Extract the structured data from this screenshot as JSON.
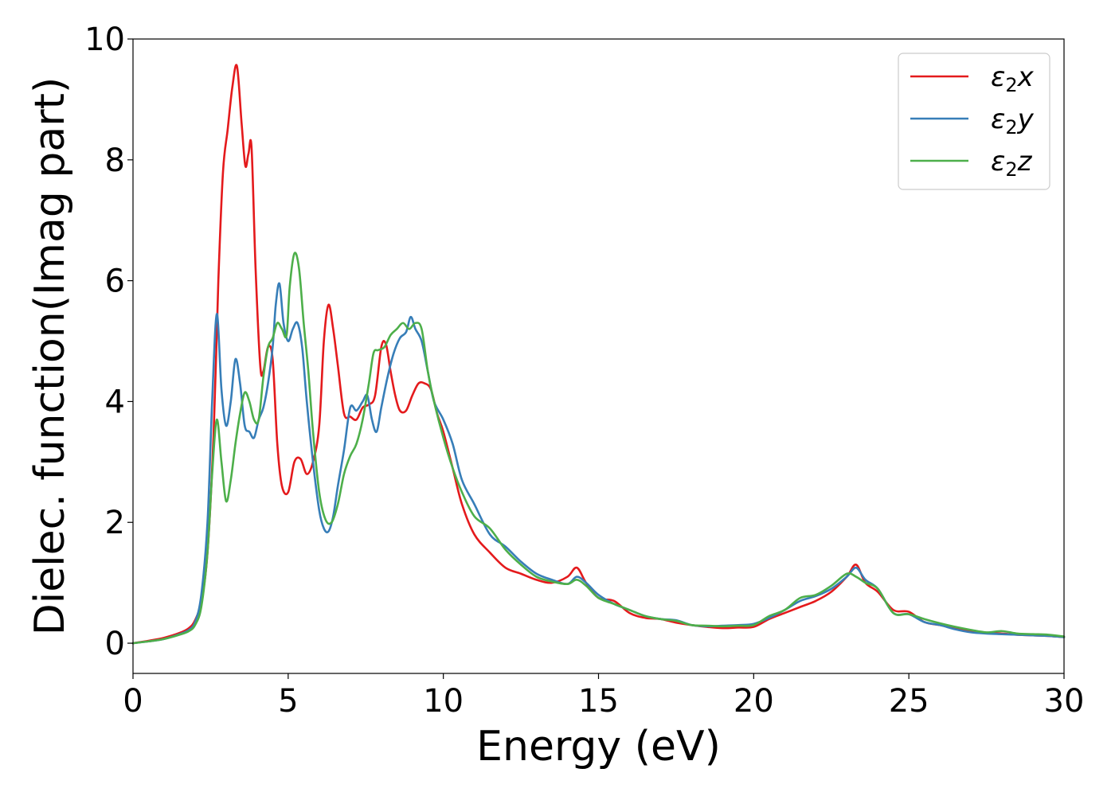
{
  "chart_data": {
    "type": "line",
    "title": "",
    "xlabel": "Energy (eV)",
    "ylabel": "Dielec. function(Imag part)",
    "xlim": [
      0,
      30
    ],
    "ylim": [
      -0.5,
      10
    ],
    "xticks": [
      "0",
      "5",
      "10",
      "15",
      "20",
      "25",
      "30"
    ],
    "yticks": [
      "0",
      "2",
      "4",
      "6",
      "8",
      "10"
    ],
    "grid": false,
    "legend_position": "top-right",
    "series": [
      {
        "name": "ε₂x",
        "legend_base": "ε",
        "legend_sub": "2",
        "legend_suffix": "x",
        "color": "#e41a1c",
        "x": [
          0,
          0.5,
          1.0,
          1.5,
          1.8,
          2.0,
          2.2,
          2.4,
          2.6,
          2.75,
          2.9,
          3.05,
          3.2,
          3.35,
          3.5,
          3.62,
          3.72,
          3.82,
          3.95,
          4.1,
          4.2,
          4.35,
          4.5,
          4.65,
          4.8,
          5.0,
          5.2,
          5.4,
          5.6,
          5.8,
          6.0,
          6.15,
          6.3,
          6.45,
          6.6,
          6.8,
          7.0,
          7.2,
          7.4,
          7.6,
          7.8,
          8.0,
          8.15,
          8.3,
          8.45,
          8.6,
          8.8,
          9.0,
          9.2,
          9.4,
          9.6,
          9.8,
          10.0,
          10.3,
          10.6,
          11.0,
          11.5,
          12.0,
          12.5,
          13.0,
          13.5,
          14.0,
          14.3,
          14.6,
          15.0,
          15.5,
          16.0,
          16.5,
          17.0,
          17.5,
          18.0,
          18.5,
          19.0,
          19.5,
          20.0,
          20.5,
          21.0,
          21.5,
          22.0,
          22.5,
          23.0,
          23.3,
          23.6,
          24.0,
          24.5,
          25.0,
          25.5,
          26.0,
          26.5,
          27.0,
          27.5,
          28.0,
          28.5,
          29.0,
          29.5,
          30.0
        ],
        "y": [
          0,
          0.04,
          0.09,
          0.17,
          0.25,
          0.38,
          0.7,
          1.5,
          3.5,
          6.0,
          7.8,
          8.5,
          9.2,
          9.55,
          8.6,
          7.9,
          8.1,
          8.2,
          6.2,
          4.6,
          4.5,
          4.9,
          4.7,
          3.3,
          2.6,
          2.5,
          3.0,
          3.05,
          2.8,
          3.0,
          3.6,
          5.0,
          5.6,
          5.2,
          4.6,
          3.8,
          3.75,
          3.7,
          3.9,
          3.95,
          4.1,
          4.9,
          4.95,
          4.5,
          4.1,
          3.85,
          3.85,
          4.1,
          4.3,
          4.3,
          4.2,
          3.8,
          3.5,
          2.9,
          2.3,
          1.8,
          1.5,
          1.25,
          1.15,
          1.05,
          1.0,
          1.1,
          1.25,
          1.0,
          0.75,
          0.7,
          0.5,
          0.42,
          0.4,
          0.34,
          0.3,
          0.27,
          0.25,
          0.26,
          0.27,
          0.4,
          0.5,
          0.6,
          0.7,
          0.85,
          1.1,
          1.3,
          1.0,
          0.85,
          0.55,
          0.52,
          0.35,
          0.3,
          0.25,
          0.2,
          0.17,
          0.16,
          0.14,
          0.13,
          0.12,
          0.1
        ]
      },
      {
        "name": "ε₂y",
        "legend_base": "ε",
        "legend_sub": "2",
        "legend_suffix": "y",
        "color": "#377eb8",
        "x": [
          0,
          0.5,
          1.0,
          1.5,
          1.8,
          2.0,
          2.2,
          2.4,
          2.55,
          2.7,
          2.85,
          3.0,
          3.15,
          3.3,
          3.45,
          3.6,
          3.75,
          3.9,
          4.05,
          4.2,
          4.35,
          4.5,
          4.6,
          4.72,
          4.85,
          5.0,
          5.15,
          5.3,
          5.45,
          5.6,
          5.8,
          6.0,
          6.15,
          6.3,
          6.45,
          6.6,
          6.8,
          7.0,
          7.2,
          7.4,
          7.55,
          7.7,
          7.85,
          8.0,
          8.2,
          8.4,
          8.6,
          8.8,
          8.95,
          9.1,
          9.3,
          9.5,
          9.7,
          10.0,
          10.3,
          10.6,
          11.0,
          11.5,
          12.0,
          12.5,
          13.0,
          13.5,
          14.0,
          14.3,
          14.6,
          15.0,
          15.5,
          16.0,
          16.5,
          17.0,
          17.5,
          18.0,
          18.5,
          19.0,
          19.5,
          20.0,
          20.5,
          21.0,
          21.5,
          22.0,
          22.5,
          23.0,
          23.3,
          23.6,
          24.0,
          24.5,
          25.0,
          25.5,
          26.0,
          26.5,
          27.0,
          27.5,
          28.0,
          28.5,
          29.0,
          29.5,
          30.0
        ],
        "y": [
          0,
          0.03,
          0.07,
          0.15,
          0.22,
          0.35,
          0.8,
          2.0,
          4.0,
          5.45,
          4.2,
          3.6,
          4.0,
          4.7,
          4.3,
          3.6,
          3.5,
          3.4,
          3.7,
          3.9,
          4.3,
          4.9,
          5.6,
          5.95,
          5.3,
          5.0,
          5.2,
          5.3,
          4.9,
          4.0,
          3.0,
          2.2,
          1.9,
          1.85,
          2.1,
          2.6,
          3.2,
          3.9,
          3.85,
          4.0,
          4.1,
          3.7,
          3.5,
          3.9,
          4.4,
          4.8,
          5.05,
          5.15,
          5.4,
          5.2,
          5.0,
          4.5,
          4.0,
          3.7,
          3.3,
          2.7,
          2.3,
          1.8,
          1.6,
          1.35,
          1.15,
          1.05,
          0.98,
          1.1,
          1.0,
          0.8,
          0.65,
          0.55,
          0.45,
          0.4,
          0.38,
          0.3,
          0.28,
          0.29,
          0.3,
          0.32,
          0.42,
          0.55,
          0.7,
          0.78,
          0.9,
          1.1,
          1.25,
          1.05,
          0.9,
          0.5,
          0.48,
          0.35,
          0.3,
          0.23,
          0.18,
          0.16,
          0.15,
          0.14,
          0.13,
          0.12,
          0.1
        ]
      },
      {
        "name": "ε₂z",
        "legend_base": "ε",
        "legend_sub": "2",
        "legend_suffix": "z",
        "color": "#4daf4a",
        "x": [
          0,
          0.5,
          1.0,
          1.5,
          1.8,
          2.0,
          2.2,
          2.4,
          2.55,
          2.7,
          2.85,
          3.0,
          3.15,
          3.3,
          3.45,
          3.6,
          3.75,
          3.9,
          4.05,
          4.2,
          4.35,
          4.5,
          4.65,
          4.8,
          4.95,
          5.05,
          5.2,
          5.35,
          5.5,
          5.65,
          5.8,
          6.0,
          6.2,
          6.4,
          6.6,
          6.8,
          7.0,
          7.2,
          7.4,
          7.6,
          7.75,
          7.9,
          8.1,
          8.3,
          8.5,
          8.7,
          8.9,
          9.1,
          9.3,
          9.5,
          9.7,
          10.0,
          10.3,
          10.6,
          11.0,
          11.5,
          12.0,
          12.5,
          13.0,
          13.5,
          14.0,
          14.3,
          14.6,
          15.0,
          15.5,
          16.0,
          16.5,
          17.0,
          17.5,
          18.0,
          18.5,
          19.0,
          19.5,
          20.0,
          20.5,
          21.0,
          21.5,
          22.0,
          22.5,
          23.0,
          23.3,
          23.6,
          24.0,
          24.5,
          25.0,
          25.5,
          26.0,
          26.5,
          27.0,
          27.5,
          28.0,
          28.5,
          29.0,
          29.5,
          30.0
        ],
        "y": [
          0,
          0.03,
          0.07,
          0.14,
          0.2,
          0.3,
          0.6,
          1.5,
          2.8,
          3.7,
          3.0,
          2.35,
          2.7,
          3.3,
          3.8,
          4.15,
          4.0,
          3.7,
          3.7,
          4.4,
          4.9,
          5.05,
          5.3,
          5.2,
          5.1,
          5.9,
          6.45,
          6.2,
          5.3,
          4.5,
          3.5,
          2.5,
          2.05,
          2.0,
          2.3,
          2.8,
          3.1,
          3.3,
          3.7,
          4.3,
          4.8,
          4.85,
          4.9,
          5.1,
          5.2,
          5.3,
          5.2,
          5.3,
          5.2,
          4.5,
          4.0,
          3.4,
          2.9,
          2.5,
          2.1,
          1.9,
          1.55,
          1.3,
          1.1,
          1.02,
          0.98,
          1.05,
          0.95,
          0.75,
          0.65,
          0.55,
          0.45,
          0.4,
          0.37,
          0.3,
          0.29,
          0.28,
          0.29,
          0.3,
          0.45,
          0.55,
          0.75,
          0.8,
          0.95,
          1.15,
          1.1,
          1.0,
          0.9,
          0.5,
          0.48,
          0.4,
          0.33,
          0.27,
          0.22,
          0.18,
          0.2,
          0.16,
          0.15,
          0.14,
          0.11
        ]
      }
    ]
  }
}
